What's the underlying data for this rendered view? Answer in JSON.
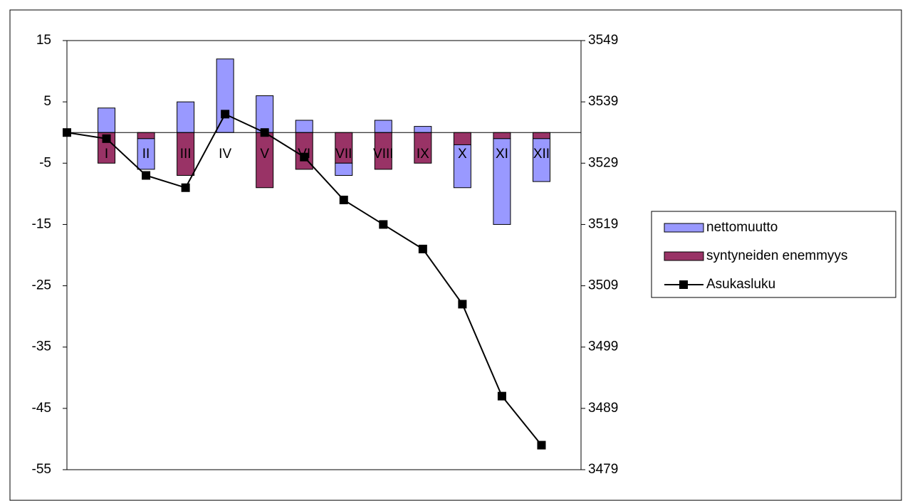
{
  "chart_data": {
    "type": "bar",
    "categories": [
      null,
      "I",
      "II",
      "III",
      "IV",
      "V",
      "VI",
      "VII",
      "VIII",
      "IX",
      "X",
      "XI",
      "XII"
    ],
    "series": [
      {
        "name": "syntyneiden enemmyys",
        "color": "#993366",
        "values": [
          null,
          -5,
          -1,
          -7,
          0,
          -9,
          -6,
          -5,
          -6,
          -5,
          -2,
          -1,
          -1
        ]
      },
      {
        "name": "nettomuutto",
        "color": "#9999ff",
        "values": [
          null,
          4,
          -5,
          5,
          12,
          6,
          2,
          -2,
          2,
          1,
          -7,
          -14,
          -7
        ]
      },
      {
        "name": "Asukasluku",
        "color": "#000000",
        "type": "line",
        "axis": "y2",
        "values": [
          3534,
          3533,
          3527,
          3525,
          3537,
          3534,
          3530,
          3523,
          3519,
          3515,
          3506,
          3491,
          3483
        ]
      }
    ],
    "legend_order": [
      1,
      0,
      2
    ],
    "ylim": [
      -55,
      15
    ],
    "yticks": [
      -55,
      -45,
      -35,
      -25,
      -15,
      -5,
      5,
      15
    ],
    "y2lim": [
      3479,
      3549
    ],
    "y2ticks": [
      3479,
      3489,
      3499,
      3509,
      3519,
      3529,
      3539,
      3549
    ],
    "stacked": true
  }
}
